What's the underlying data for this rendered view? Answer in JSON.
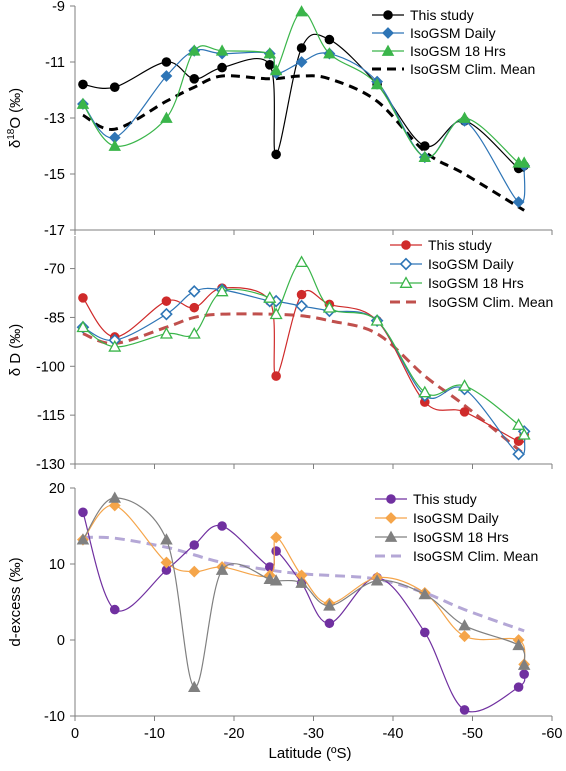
{
  "figure": {
    "xlabel": "Latitude (ºS)",
    "x_ticks": [
      0,
      -10,
      -20,
      -30,
      -40,
      -50,
      -60
    ],
    "x_tick_labels": [
      "0",
      "-10",
      "-20",
      "-30",
      "-40",
      "-50",
      "-60"
    ]
  },
  "chart_data": [
    {
      "type": "line",
      "ylabel": "δ18O (‰)",
      "ylabel_parts": {
        "pre": "δ",
        "sup": "18",
        "post": "O (‰)"
      },
      "xlim": [
        0,
        -60
      ],
      "ylim": [
        -17,
        -9
      ],
      "y_ticks": [
        -9,
        -11,
        -13,
        -15,
        -17
      ],
      "y_tick_labels": [
        "-9",
        "-11",
        "-13",
        "-15",
        "-17"
      ],
      "legend": "top-right",
      "series": [
        {
          "name": "This study",
          "color": "#000000",
          "marker": "circle",
          "dash": "",
          "x": [
            -1,
            -5,
            -11.5,
            -15,
            -18.5,
            -24.5,
            -25.3,
            -28.5,
            -32,
            -38,
            -44,
            -49,
            -55.8,
            -56.5
          ],
          "y": [
            -11.8,
            -11.9,
            -11.0,
            -11.6,
            -11.2,
            -11.1,
            -14.3,
            -10.5,
            -10.2,
            -11.8,
            -14.0,
            -13.1,
            -14.8,
            -14.7
          ]
        },
        {
          "name": "IsoGSM Daily",
          "color": "#2e75b6",
          "marker": "diamond",
          "dash": "",
          "x": [
            -1,
            -5,
            -11.5,
            -15,
            -18.5,
            -24.5,
            -25.3,
            -28.5,
            -32,
            -38,
            -44,
            -49,
            -55.8,
            -56.5
          ],
          "y": [
            -12.5,
            -13.7,
            -11.5,
            -10.6,
            -10.7,
            -10.7,
            -11.4,
            -11.0,
            -10.7,
            -11.7,
            -14.4,
            -13.1,
            -16.0,
            -14.7
          ]
        },
        {
          "name": "IsoGSM 18 Hrs",
          "color": "#3ab54a",
          "marker": "triangle",
          "dash": "",
          "x": [
            -1,
            -5,
            -11.5,
            -15,
            -18.5,
            -24.5,
            -25.3,
            -28.5,
            -32,
            -38,
            -44,
            -49,
            -55.8,
            -56.5
          ],
          "y": [
            -12.5,
            -14.0,
            -13.0,
            -10.6,
            -10.6,
            -10.7,
            -11.3,
            -9.2,
            -10.7,
            -11.8,
            -14.4,
            -13.0,
            -14.6,
            -14.6
          ]
        },
        {
          "name": "IsoGSM Clim. Mean",
          "color": "#000000",
          "marker": "none",
          "dash": "9 6",
          "x": [
            -1,
            -5,
            -11.5,
            -15,
            -18.5,
            -24.5,
            -28.5,
            -32,
            -38,
            -44,
            -49,
            -56.5
          ],
          "y": [
            -12.9,
            -13.4,
            -12.4,
            -11.9,
            -11.5,
            -11.6,
            -11.5,
            -11.6,
            -12.4,
            -14.2,
            -15.0,
            -16.3
          ]
        }
      ]
    },
    {
      "type": "line",
      "ylabel": "δ D (‰)",
      "xlim": [
        0,
        -60
      ],
      "ylim": [
        -130,
        -60
      ],
      "y_ticks": [
        -70,
        -85,
        -100,
        -115,
        -130
      ],
      "y_tick_labels": [
        "-70",
        "-85",
        "-100",
        "-115",
        "-130"
      ],
      "legend": "top-right",
      "series": [
        {
          "name": "This study",
          "color": "#cf2a2a",
          "marker": "circle",
          "dash": "",
          "x": [
            -1,
            -5,
            -11.5,
            -15,
            -18.5,
            -24.5,
            -25.3,
            -28.5,
            -32,
            -38,
            -44,
            -49,
            -55.8,
            -56.5
          ],
          "y": [
            -79,
            -91,
            -80,
            -82,
            -76,
            -80,
            -103,
            -78,
            -81,
            -86,
            -111,
            -114,
            -123,
            -121
          ]
        },
        {
          "name": "IsoGSM Daily",
          "color": "#2e75b6",
          "marker": "diamond-open",
          "dash": "",
          "x": [
            -1,
            -5,
            -11.5,
            -15,
            -18.5,
            -24.5,
            -25.3,
            -28.5,
            -32,
            -38,
            -44,
            -49,
            -55.8,
            -56.5
          ],
          "y": [
            -88,
            -92,
            -84,
            -77,
            -76.5,
            -80,
            -80,
            -81.5,
            -83,
            -86,
            -109,
            -107,
            -127,
            -120
          ]
        },
        {
          "name": "IsoGSM 18 Hrs",
          "color": "#3ab54a",
          "marker": "triangle-open",
          "dash": "",
          "x": [
            -1,
            -5,
            -11.5,
            -15,
            -18.5,
            -24.5,
            -25.3,
            -28.5,
            -32,
            -38,
            -44,
            -49,
            -55.8,
            -56.5
          ],
          "y": [
            -88,
            -94,
            -90,
            -90,
            -77,
            -79,
            -84,
            -68,
            -82,
            -86,
            -108,
            -106,
            -118,
            -121
          ]
        },
        {
          "name": "IsoGSM Clim. Mean",
          "color": "#c0504d",
          "marker": "none",
          "dash": "10 6",
          "x": [
            -1,
            -5,
            -11.5,
            -15,
            -18.5,
            -24.5,
            -28.5,
            -32,
            -38,
            -44,
            -49,
            -56.5
          ],
          "y": [
            -90,
            -93,
            -88,
            -85,
            -84,
            -84,
            -84.5,
            -86,
            -90,
            -103,
            -112,
            -127
          ]
        }
      ]
    },
    {
      "type": "line",
      "ylabel": "d-excess (‰)",
      "xlim": [
        0,
        -60
      ],
      "ylim": [
        -10,
        20
      ],
      "y_ticks": [
        20,
        10,
        0,
        -10
      ],
      "y_tick_labels": [
        "20",
        "10",
        "0",
        "-10"
      ],
      "legend": "top-right",
      "series": [
        {
          "name": "This study",
          "color": "#7030a0",
          "marker": "circle",
          "dash": "",
          "x": [
            -1,
            -5,
            -11.5,
            -15,
            -18.5,
            -24.5,
            -25.3,
            -28.5,
            -32,
            -38,
            -44,
            -49,
            -55.8,
            -56.5
          ],
          "y": [
            16.8,
            4.0,
            9.2,
            12.5,
            15.0,
            9.6,
            11.7,
            7.5,
            2.2,
            8.2,
            1.0,
            -9.2,
            -6.2,
            -4.5
          ]
        },
        {
          "name": "IsoGSM Daily",
          "color": "#f5a54a",
          "marker": "diamond",
          "dash": "",
          "x": [
            -1,
            -5,
            -11.5,
            -15,
            -18.5,
            -24.5,
            -25.3,
            -28.5,
            -32,
            -38,
            -44,
            -49,
            -55.8,
            -56.5
          ],
          "y": [
            13.2,
            17.7,
            10.2,
            9.0,
            9.6,
            8.5,
            13.5,
            8.5,
            4.8,
            8.2,
            6.2,
            0.5,
            0.0,
            -3.2
          ]
        },
        {
          "name": "IsoGSM 18 Hrs",
          "color": "#808080",
          "marker": "triangle",
          "dash": "",
          "x": [
            -1,
            -5,
            -11.5,
            -15,
            -18.5,
            -24.5,
            -25.3,
            -28.5,
            -32,
            -38,
            -44,
            -49,
            -55.8,
            -56.5
          ],
          "y": [
            13.2,
            18.7,
            13.2,
            -6.2,
            9.2,
            8.0,
            7.8,
            7.5,
            4.5,
            7.8,
            6.0,
            1.9,
            -0.7,
            -3.3
          ]
        },
        {
          "name": "IsoGSM Clim. Mean",
          "color": "#b4a7d6",
          "marker": "none",
          "dash": "10 6",
          "x": [
            -1,
            -5,
            -11.5,
            -15,
            -18.5,
            -24.5,
            -28.5,
            -32,
            -38,
            -44,
            -49,
            -56.5
          ],
          "y": [
            13.5,
            13.4,
            12.2,
            11.2,
            10.2,
            9.2,
            8.7,
            8.5,
            8.0,
            6.2,
            4.0,
            1.2
          ]
        }
      ]
    }
  ]
}
